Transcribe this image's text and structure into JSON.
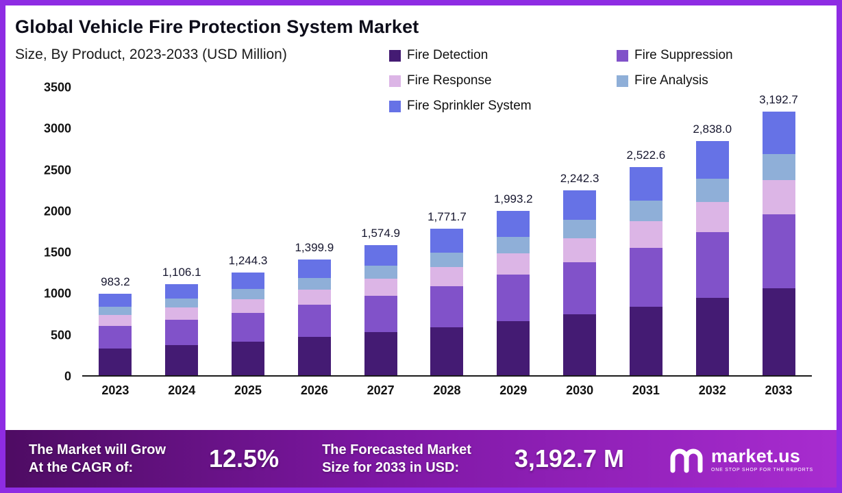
{
  "frame": {
    "border_color": "#8e2ce3"
  },
  "header": {
    "title": "Global Vehicle Fire Protection System Market",
    "subtitle": "Size, By Product, 2023-2033 (USD Million)"
  },
  "legend": {
    "items": [
      {
        "label": "Fire Detection",
        "color": "#441b73"
      },
      {
        "label": "Fire Suppression",
        "color": "#8152c9"
      },
      {
        "label": "Fire Response",
        "color": "#dcb5e6"
      },
      {
        "label": "Fire Analysis",
        "color": "#8fafd8"
      },
      {
        "label": "Fire Sprinkler System",
        "color": "#6672e6"
      }
    ]
  },
  "chart_data": {
    "type": "bar",
    "stacked": true,
    "title": "Global Vehicle Fire Protection System Market",
    "subtitle": "Size, By Product, 2023-2033 (USD Million)",
    "unit": "USD Million",
    "grid": false,
    "legend_position": "top",
    "ylim": [
      0,
      3500
    ],
    "yticks": [
      0,
      500,
      1000,
      1500,
      2000,
      2500,
      3000,
      3500
    ],
    "categories": [
      "2023",
      "2024",
      "2025",
      "2026",
      "2027",
      "2028",
      "2029",
      "2030",
      "2031",
      "2032",
      "2033"
    ],
    "totals": [
      983.2,
      1106.1,
      1244.3,
      1399.9,
      1574.9,
      1771.7,
      1993.2,
      2242.3,
      2522.6,
      2838.0,
      3192.7
    ],
    "total_labels": [
      "983.2",
      "1,106.1",
      "1,244.3",
      "1,399.9",
      "1,574.9",
      "1,771.7",
      "1,993.2",
      "2,242.3",
      "2,522.6",
      "2,838.0",
      "3,192.7"
    ],
    "series": [
      {
        "name": "Fire Detection",
        "color": "#441b73",
        "values": [
          324.5,
          365.0,
          410.6,
          462.0,
          519.7,
          584.7,
          657.8,
          740.0,
          832.5,
          936.5,
          1053.6
        ]
      },
      {
        "name": "Fire Suppression",
        "color": "#8152c9",
        "values": [
          275.3,
          309.7,
          348.4,
          392.0,
          441.0,
          496.1,
          558.1,
          627.8,
          706.3,
          794.6,
          894.0
        ]
      },
      {
        "name": "Fire Response",
        "color": "#dcb5e6",
        "values": [
          127.8,
          143.8,
          161.8,
          182.0,
          204.7,
          230.3,
          259.1,
          291.5,
          327.9,
          369.0,
          415.0
        ]
      },
      {
        "name": "Fire Analysis",
        "color": "#8fafd8",
        "values": [
          98.3,
          110.6,
          124.4,
          140.0,
          157.5,
          177.2,
          199.3,
          224.2,
          252.3,
          283.8,
          319.3
        ]
      },
      {
        "name": "Fire Sprinkler System",
        "color": "#6672e6",
        "values": [
          157.3,
          177.0,
          199.1,
          223.9,
          252.0,
          283.4,
          318.9,
          358.8,
          403.6,
          454.1,
          510.8
        ]
      }
    ]
  },
  "banner": {
    "cagr_label_line1": "The Market will Grow",
    "cagr_label_line2": "At the CAGR of:",
    "cagr_value": "12.5%",
    "forecast_label_line1": "The Forecasted Market",
    "forecast_label_line2": "Size for 2033 in USD:",
    "forecast_value": "3,192.7 M",
    "brand_name": "market.us",
    "brand_tagline": "ONE STOP SHOP FOR THE REPORTS"
  }
}
